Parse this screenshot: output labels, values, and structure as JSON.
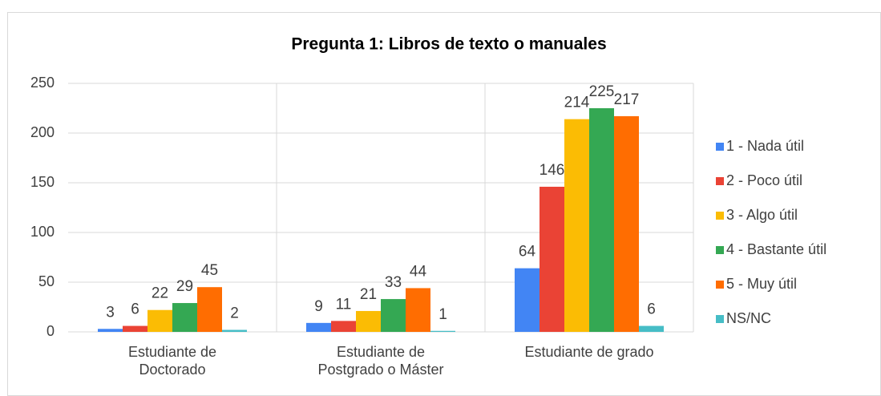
{
  "chart_data": {
    "type": "bar",
    "title": "Pregunta 1: Libros de texto o manuales",
    "categories": [
      "Estudiante de Doctorado",
      "Estudiante de Postgrado o Máster",
      "Estudiante de grado"
    ],
    "series": [
      {
        "name": "1 - Nada útil",
        "color": "#4285f4",
        "values": [
          3,
          9,
          64
        ]
      },
      {
        "name": "2 - Poco útil",
        "color": "#ea4335",
        "values": [
          6,
          11,
          146
        ]
      },
      {
        "name": "3 - Algo útil",
        "color": "#fbbc04",
        "values": [
          22,
          21,
          214
        ]
      },
      {
        "name": "4 - Bastante útil",
        "color": "#34a853",
        "values": [
          29,
          33,
          225
        ]
      },
      {
        "name": "5 - Muy útil",
        "color": "#ff6d01",
        "values": [
          45,
          44,
          217
        ]
      },
      {
        "name": "NS/NC",
        "color": "#46bdc6",
        "values": [
          2,
          1,
          6
        ]
      }
    ],
    "ylim": [
      0,
      250
    ],
    "yticks": [
      0,
      50,
      100,
      150,
      200,
      250
    ],
    "grid": true,
    "legend": "right"
  }
}
